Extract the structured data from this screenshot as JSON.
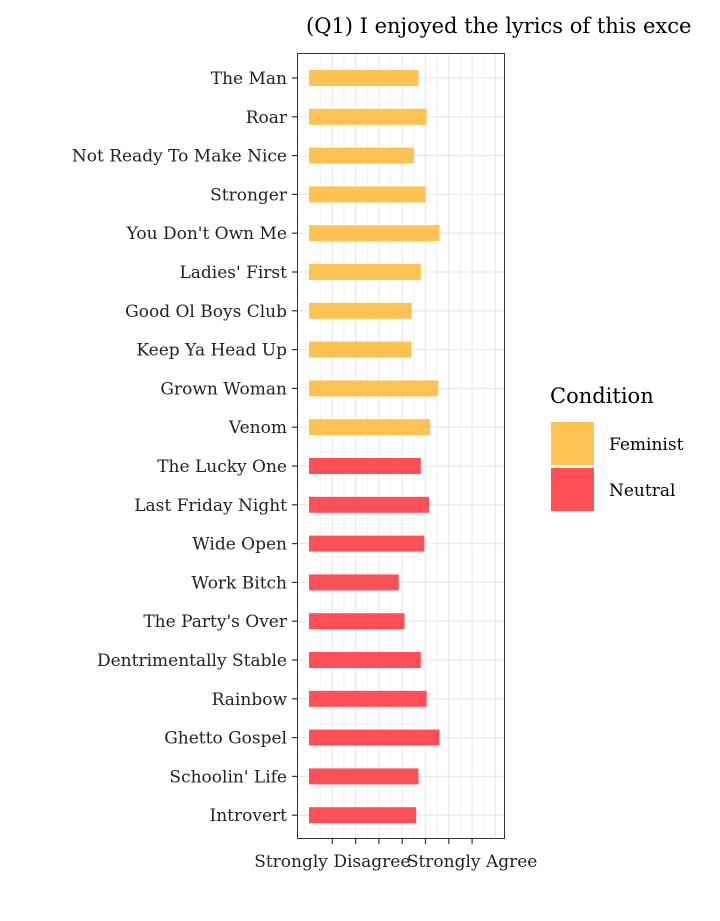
{
  "chart_data": {
    "type": "bar",
    "orientation": "horizontal",
    "title": "(Q1) I enjoyed the lyrics of this exce",
    "xlabel": "",
    "ylabel": "",
    "xlim": [
      0,
      8.5
    ],
    "x_tick_labels": [
      "Strongly Disagree",
      "Strongly Agree"
    ],
    "grid": true,
    "legend": {
      "title": "Condition",
      "position": "right",
      "entries": [
        {
          "name": "Feminist",
          "color": "#FFC253"
        },
        {
          "name": "Neutral",
          "color": "#FF4F57"
        }
      ]
    },
    "categories": [
      "The Man",
      "Roar",
      "Not Ready To Make Nice",
      "Stronger",
      "You Don't Own Me",
      "Ladies' First",
      "Good Ol Boys Club",
      "Keep Ya Head Up",
      "Grown Woman",
      "Venom",
      "The Lucky One",
      "Last Friday Night",
      "Wide Open",
      "Work Bitch",
      "The Party's Over",
      "Dentrimentally Stable",
      "Rainbow",
      "Ghetto Gospel",
      "Schoolin' Life",
      "Introvert"
    ],
    "values": [
      4.7,
      5.05,
      4.5,
      5.0,
      5.6,
      4.8,
      4.4,
      4.4,
      5.55,
      5.2,
      4.8,
      5.15,
      4.95,
      3.85,
      4.1,
      4.8,
      5.05,
      5.6,
      4.7,
      4.6
    ],
    "conditions": [
      "Feminist",
      "Feminist",
      "Feminist",
      "Feminist",
      "Feminist",
      "Feminist",
      "Feminist",
      "Feminist",
      "Feminist",
      "Feminist",
      "Neutral",
      "Neutral",
      "Neutral",
      "Neutral",
      "Neutral",
      "Neutral",
      "Neutral",
      "Neutral",
      "Neutral",
      "Neutral"
    ]
  }
}
